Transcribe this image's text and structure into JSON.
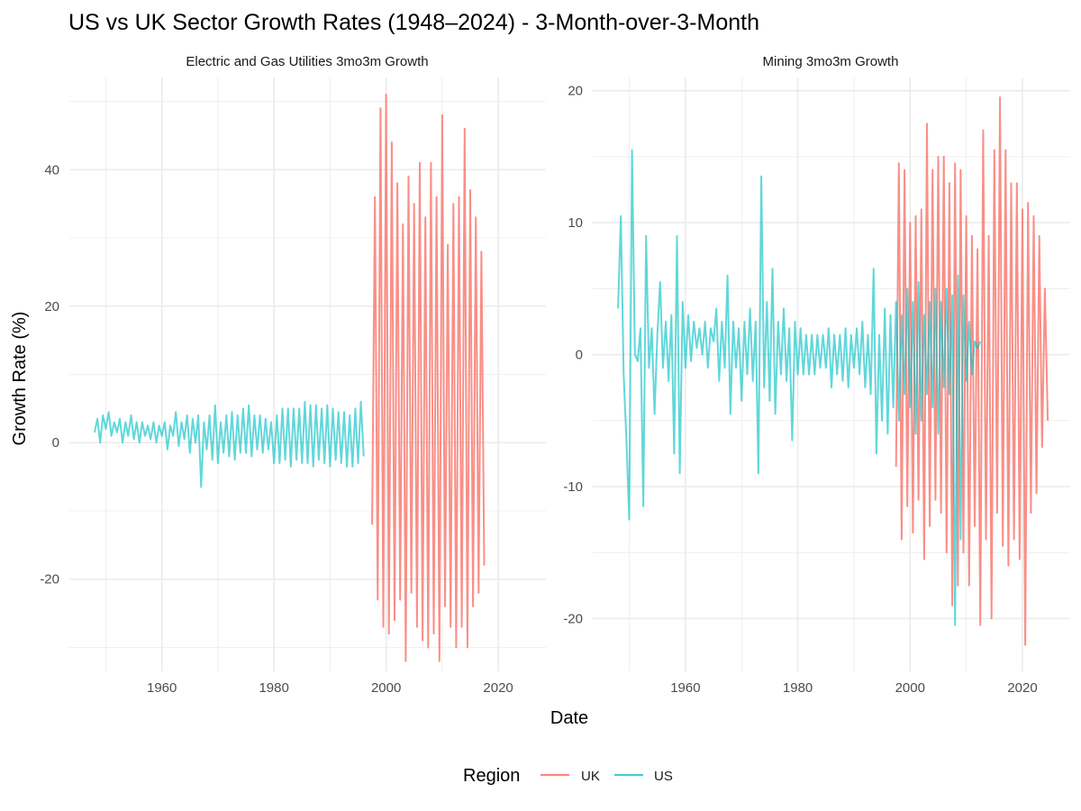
{
  "chart_data": {
    "type": "line",
    "title": "US vs UK Sector Growth Rates (1948–2024) - 3-Month-over-3-Month",
    "xlabel": "Date",
    "ylabel": "Growth Rate (%)",
    "legend": {
      "title": "Region",
      "position": "bottom",
      "entries": [
        {
          "name": "UK",
          "color": "#F8766D"
        },
        {
          "name": "US",
          "color": "#00BFC4"
        }
      ]
    },
    "grid": true,
    "panels": [
      {
        "strip": "Electric and Gas Utilities 3mo3m Growth",
        "xlim": [
          1943.5,
          2028.5
        ],
        "ylim": [
          -33.5,
          53.5
        ],
        "x_ticks": [
          1960,
          1980,
          2000,
          2020
        ],
        "x_tick_labels": [
          "1960",
          "1980",
          "2000",
          "2020"
        ],
        "y_ticks": [
          -20,
          0,
          20,
          40
        ],
        "y_tick_labels": [
          "-20",
          "0",
          "20",
          "40"
        ],
        "series": [
          {
            "name": "UK",
            "start_year": 1997.5,
            "step_years": 0.5,
            "values": [
              -12,
              36,
              -23,
              49,
              -27,
              51,
              -28,
              44,
              -26,
              38,
              -23,
              32,
              -32,
              39,
              -22,
              35,
              -27,
              41,
              -29,
              33,
              -30,
              41,
              -28,
              36,
              -32,
              48,
              -24,
              29,
              -27,
              35,
              -30,
              36,
              -27,
              46,
              -30,
              37,
              -24,
              33,
              -22,
              28,
              -18
            ]
          },
          {
            "name": "US",
            "start_year": 1948.0,
            "step_years": 0.5,
            "values": [
              1.5,
              3.5,
              0,
              4,
              2,
              4.5,
              1,
              3,
              1.5,
              3.5,
              0,
              3,
              1,
              4,
              0.5,
              3,
              0,
              3,
              1,
              2.5,
              0.5,
              3,
              0,
              2.5,
              1,
              3,
              -1,
              2.5,
              1,
              4.5,
              -0.5,
              3,
              0.5,
              4,
              -1.5,
              3.5,
              0,
              4,
              -6.5,
              3,
              -1,
              4,
              -2.5,
              5.5,
              -3,
              3,
              -1.5,
              4,
              -2,
              4.5,
              -2.5,
              4,
              -1.5,
              5,
              -1.5,
              5.5,
              -2,
              4,
              -1,
              4,
              -1.5,
              3.5,
              -1,
              3,
              -3,
              4,
              -3,
              5,
              -2.5,
              5,
              -3.5,
              5,
              -2.5,
              5,
              -3,
              6,
              -3,
              5.5,
              -3.5,
              5.5,
              -2.5,
              5,
              -3,
              5.5,
              -3.5,
              5,
              -2.5,
              4.5,
              -3,
              4.5,
              -3.5,
              4,
              -3.5,
              5,
              -3,
              6,
              -2
            ]
          }
        ]
      },
      {
        "strip": "Mining 3mo3m Growth",
        "xlim": [
          1943.5,
          2028.5
        ],
        "ylim": [
          -24.0,
          21.0
        ],
        "x_ticks": [
          1960,
          1980,
          2000,
          2020
        ],
        "x_tick_labels": [
          "1960",
          "1980",
          "2000",
          "2020"
        ],
        "y_ticks": [
          -20,
          -10,
          0,
          10,
          20
        ],
        "y_tick_labels": [
          "-20",
          "-10",
          "0",
          "10",
          "20"
        ],
        "series": [
          {
            "name": "UK",
            "start_year": 1997.5,
            "step_years": 0.5,
            "values": [
              -8.5,
              14.5,
              -14,
              14,
              -11.5,
              10,
              -13.5,
              10.5,
              -11,
              11,
              -15.5,
              17.5,
              -13,
              14,
              -11,
              15,
              -12,
              15,
              -15,
              13,
              -19,
              14.5,
              -17.5,
              14,
              -15,
              10.5,
              -17.5,
              9,
              -13,
              8,
              -20.5,
              17,
              -14,
              9,
              -20,
              15.5,
              -12,
              19.5,
              -14.5,
              15.5,
              -16,
              13,
              -14,
              13,
              -15.5,
              11,
              -22,
              11.5,
              -12,
              10.5,
              -10.5,
              9,
              -7,
              5,
              -5
            ]
          },
          {
            "name": "US",
            "start_year": 1948.0,
            "step_years": 0.5,
            "values": [
              3.5,
              10.5,
              -1.5,
              -6.5,
              -12.5,
              15.5,
              0,
              -0.5,
              2,
              -11.5,
              9,
              -1,
              2,
              -4.5,
              1.5,
              5.5,
              -1,
              2.5,
              -2,
              3,
              -7.5,
              9,
              -9,
              4,
              -1,
              3,
              -0.5,
              2.5,
              0.5,
              2,
              0,
              2.5,
              -1,
              2,
              1,
              3.5,
              -2,
              2.5,
              -1,
              6,
              -4.5,
              2.5,
              -1,
              2,
              -3.5,
              2.5,
              -1.5,
              3.5,
              -2,
              2.5,
              -9,
              13.5,
              -2.5,
              4,
              -3.5,
              6.5,
              -4.5,
              2.5,
              -1.5,
              3.5,
              -2,
              2,
              -6.5,
              2.5,
              -1.5,
              2,
              -1.5,
              1.5,
              -1.5,
              1.5,
              -1.5,
              1.5,
              -1,
              1.5,
              -1,
              2,
              -2.5,
              1.5,
              -1.5,
              1.5,
              -2,
              2,
              -2.5,
              1.5,
              -1,
              2,
              -1.5,
              2.5,
              -2.5,
              1.5,
              -3,
              6.5,
              -7.5,
              1.5,
              -5,
              3.5,
              -6,
              3,
              -4,
              4,
              -5,
              3,
              -3,
              5,
              -4,
              4,
              -6,
              5.5,
              -5,
              3,
              -3,
              4,
              -4,
              5,
              -6,
              4,
              -2.5,
              5,
              -3,
              4.5,
              -20.5,
              6,
              -14,
              4.5,
              -2,
              2.5,
              -1.5,
              1,
              0.5,
              1
            ]
          }
        ]
      }
    ]
  }
}
